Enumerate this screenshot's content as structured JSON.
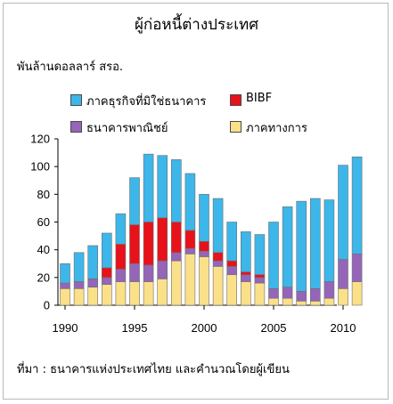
{
  "title": "ผู้ก่อหนี้ต่างประเทศ",
  "unit_label": "พันล้านดอลลาร์ สรอ.",
  "source_note": "ที่มา : ธนาคารแห่งประเทศไทย และคำนวณโดยผู้เขียน",
  "colors": {
    "private_nonbank": "#3db6e9",
    "bibf": "#e8121a",
    "commercial_banks": "#9565b8",
    "official": "#fbe08a"
  },
  "chart_data": {
    "type": "bar",
    "stacked": true,
    "title": "ผู้ก่อหนี้ต่างประเทศ",
    "ylabel": "พันล้านดอลลาร์ สรอ.",
    "xlabel": "",
    "ylim": [
      0,
      120
    ],
    "yticks": [
      0,
      20,
      40,
      60,
      80,
      100,
      120
    ],
    "xticks": [
      1990,
      1995,
      2000,
      2005,
      2010
    ],
    "grid": false,
    "legend_position": "top",
    "categories": [
      1990,
      1991,
      1992,
      1993,
      1994,
      1995,
      1996,
      1997,
      1998,
      1999,
      2000,
      2001,
      2002,
      2003,
      2004,
      2005,
      2006,
      2007,
      2008,
      2009,
      2010,
      2011
    ],
    "series": [
      {
        "name": "ภาคทางการ",
        "key": "official",
        "values": [
          12,
          12,
          13,
          15,
          17,
          17,
          17,
          19,
          32,
          37,
          35,
          28,
          22,
          17,
          16,
          5,
          5,
          3,
          3,
          5,
          12,
          17
        ]
      },
      {
        "name": "ธนาคารพาณิชย์",
        "key": "commercial_banks",
        "values": [
          4,
          5,
          6,
          5,
          9,
          13,
          12,
          13,
          6,
          4,
          4,
          4,
          6,
          5,
          4,
          7,
          8,
          7,
          9,
          12,
          21,
          20
        ]
      },
      {
        "name": "BIBF",
        "key": "bibf",
        "values": [
          0,
          0,
          0,
          7,
          18,
          28,
          31,
          31,
          22,
          13,
          7,
          6,
          4,
          2,
          2,
          0,
          0,
          0,
          0,
          0,
          0,
          0
        ]
      },
      {
        "name": "ภาคธุรกิจที่มิใช่ธนาคาร",
        "key": "private_nonbank",
        "values": [
          14,
          21,
          24,
          25,
          22,
          34,
          49,
          45,
          45,
          41,
          34,
          39,
          28,
          29,
          29,
          48,
          58,
          65,
          65,
          59,
          68,
          70
        ]
      }
    ]
  },
  "legend": [
    {
      "label": "ภาคธุรกิจที่มิใช่ธนาคาร",
      "key": "private_nonbank"
    },
    {
      "label": "BIBF",
      "key": "bibf"
    },
    {
      "label": "ธนาคารพาณิชย์",
      "key": "commercial_banks"
    },
    {
      "label": "ภาคทางการ",
      "key": "official"
    }
  ]
}
